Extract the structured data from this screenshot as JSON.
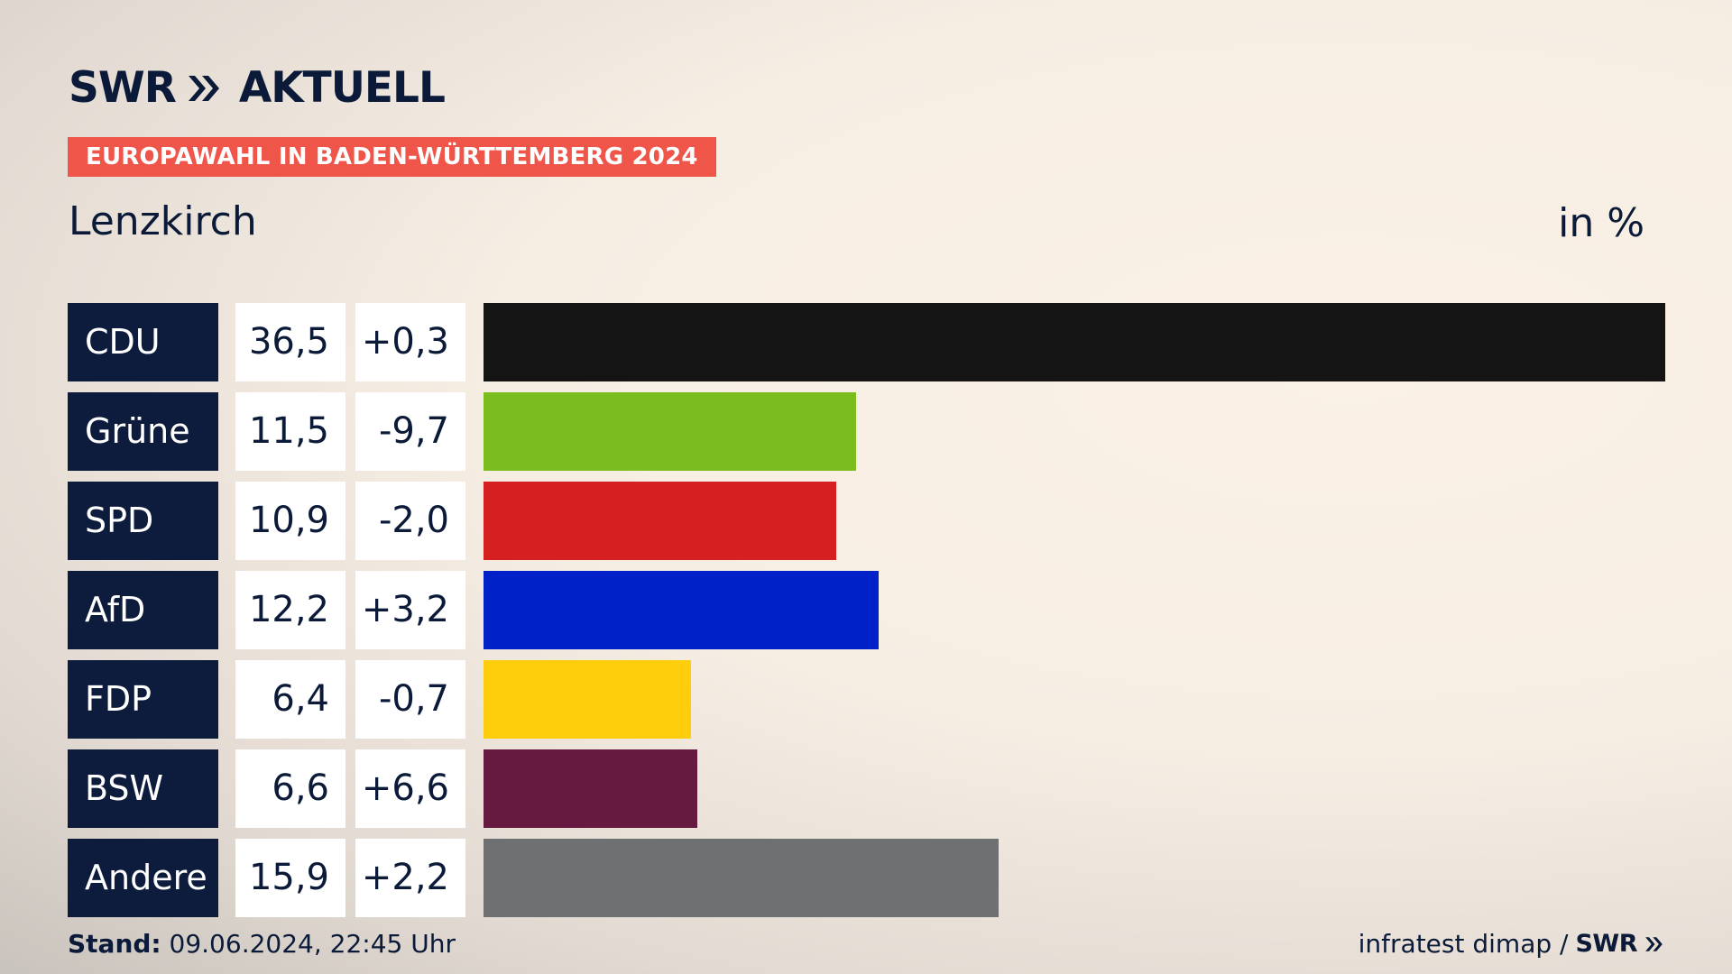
{
  "header": {
    "logo_text": "SWR",
    "logo_suffix": "AKTUELL",
    "badge": "EUROPAWAHL IN BADEN-WÜRTTEMBERG 2024",
    "region": "Lenzkirch",
    "unit": "in %"
  },
  "chart_data": {
    "type": "bar",
    "orientation": "horizontal",
    "categories": [
      "CDU",
      "Grüne",
      "SPD",
      "AfD",
      "FDP",
      "BSW",
      "Andere"
    ],
    "values": [
      36.5,
      11.5,
      10.9,
      12.2,
      6.4,
      6.6,
      15.9
    ],
    "value_labels": [
      "36,5",
      "11,5",
      "10,9",
      "12,2",
      "6,4",
      "6,6",
      "15,9"
    ],
    "diff_labels": [
      "+0,3",
      "-9,7",
      "-2,0",
      "+3,2",
      "-0,7",
      "+6,6",
      "+2,2"
    ],
    "colors": [
      "#141414",
      "#7bbd1e",
      "#d51f20",
      "#0020c8",
      "#fecd0b",
      "#671a40",
      "#6f7072"
    ],
    "xlim": [
      0,
      36.5
    ]
  },
  "footer": {
    "stand_label": "Stand:",
    "stand_value": "09.06.2024, 22:45 Uhr",
    "source": "infratest dimap /",
    "source_logo": "SWR"
  }
}
